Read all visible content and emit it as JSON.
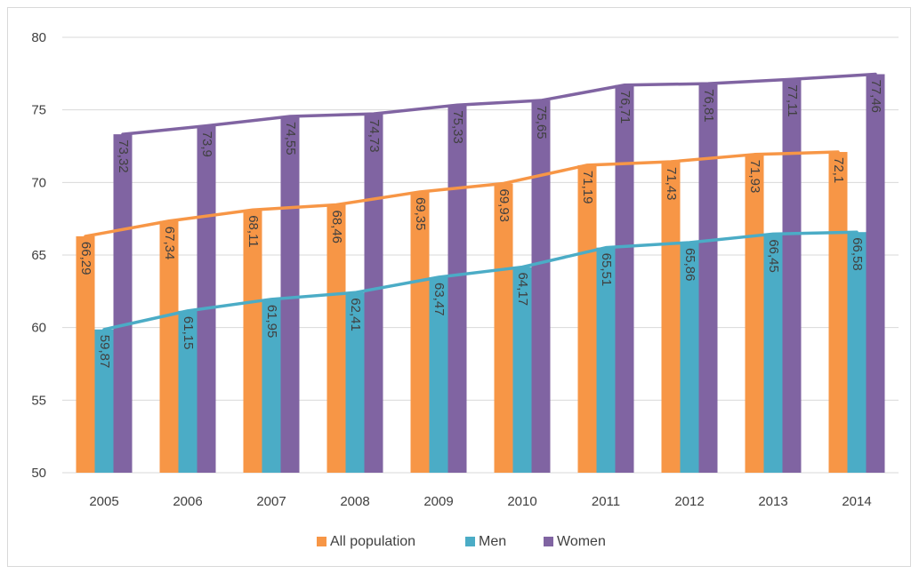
{
  "chart_data": {
    "type": "bar",
    "categories": [
      "2005",
      "2006",
      "2007",
      "2008",
      "2009",
      "2010",
      "2011",
      "2012",
      "2013",
      "2014"
    ],
    "series": [
      {
        "name": "All population",
        "color": "#f79646",
        "values": [
          66.29,
          67.34,
          68.11,
          68.46,
          69.35,
          69.93,
          71.19,
          71.43,
          71.93,
          72.1
        ],
        "labels": [
          "66,29",
          "67,34",
          "68,11",
          "68,46",
          "69,35",
          "69,93",
          "71,19",
          "71,43",
          "71,93",
          "72,1"
        ]
      },
      {
        "name": "Men",
        "color": "#4bacc6",
        "values": [
          59.87,
          61.15,
          61.95,
          62.41,
          63.47,
          64.17,
          65.51,
          65.86,
          66.45,
          66.58
        ],
        "labels": [
          "59,87",
          "61,15",
          "61,95",
          "62,41",
          "63,47",
          "64,17",
          "65,51",
          "65,86",
          "66,45",
          "66,58"
        ]
      },
      {
        "name": "Women",
        "color": "#8064a2",
        "values": [
          73.32,
          73.9,
          74.55,
          74.73,
          75.33,
          75.65,
          76.71,
          76.81,
          77.11,
          77.46
        ],
        "labels": [
          "73,32",
          "73,9",
          "74,55",
          "74,73",
          "75,33",
          "75,65",
          "76,71",
          "76,81",
          "77,11",
          "77,46"
        ]
      }
    ],
    "overlay": "line per series connecting the bar tops",
    "ylim": [
      50,
      80
    ],
    "yticks": [
      "50",
      "55",
      "60",
      "65",
      "70",
      "75",
      "80"
    ],
    "grid": "horizontal",
    "legend_position": "bottom",
    "title": "",
    "xlabel": "",
    "ylabel": ""
  }
}
